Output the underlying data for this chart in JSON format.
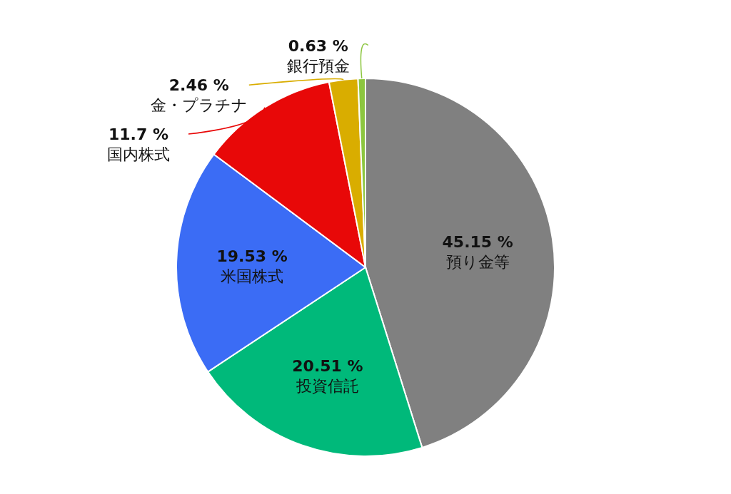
{
  "chart_data": {
    "type": "pie",
    "categories": [
      "預り金等",
      "投資信託",
      "米国株式",
      "国内株式",
      "金・プラチナ",
      "銀行預金"
    ],
    "values": [
      45.15,
      20.51,
      19.53,
      11.7,
      2.46,
      0.63
    ],
    "value_labels": [
      "45.15 %",
      "20.51 %",
      "19.53 %",
      "11.7 %",
      "2.46 %",
      "0.63 %"
    ],
    "colors": [
      "#808080",
      "#00b97a",
      "#3b6cf5",
      "#e80808",
      "#d9ad00",
      "#8cc63f"
    ]
  }
}
